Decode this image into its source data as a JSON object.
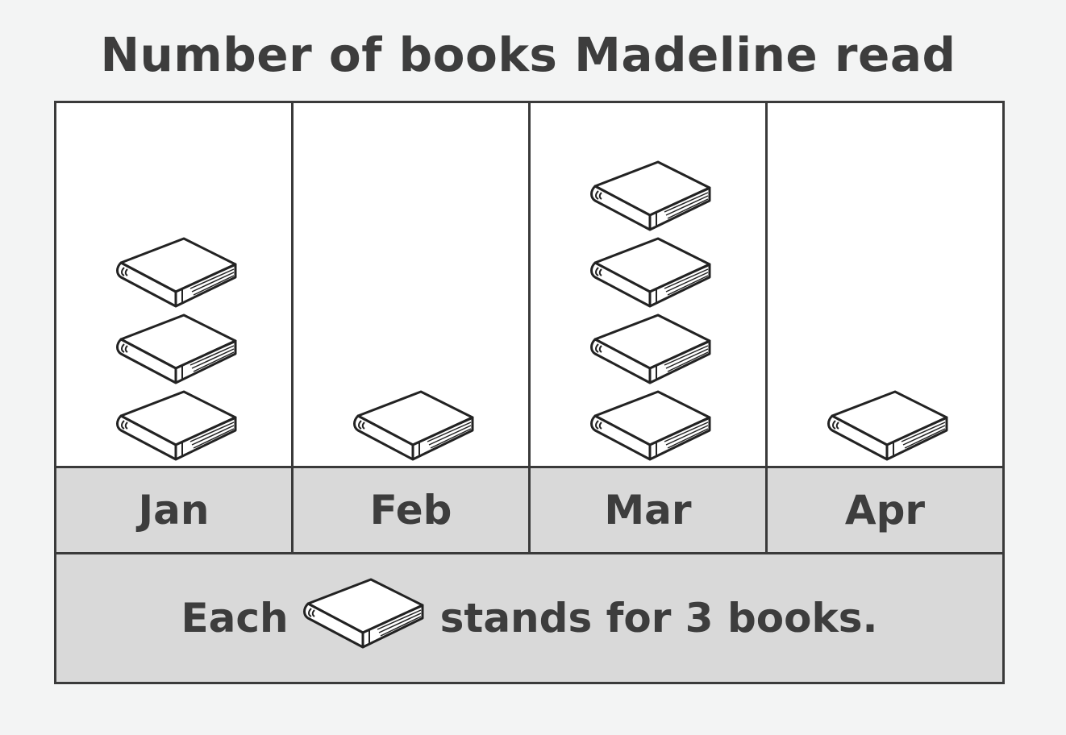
{
  "chart_data": {
    "type": "pictograph",
    "title": "Number of books Madeline read",
    "categories": [
      "Jan",
      "Feb",
      "Mar",
      "Apr"
    ],
    "symbol_counts": [
      3,
      1,
      4,
      1
    ],
    "values": [
      9,
      3,
      12,
      3
    ],
    "key": {
      "prefix": "Each",
      "suffix": "stands for 3 books.",
      "symbol": "book-icon",
      "value_per_symbol": 3
    }
  }
}
